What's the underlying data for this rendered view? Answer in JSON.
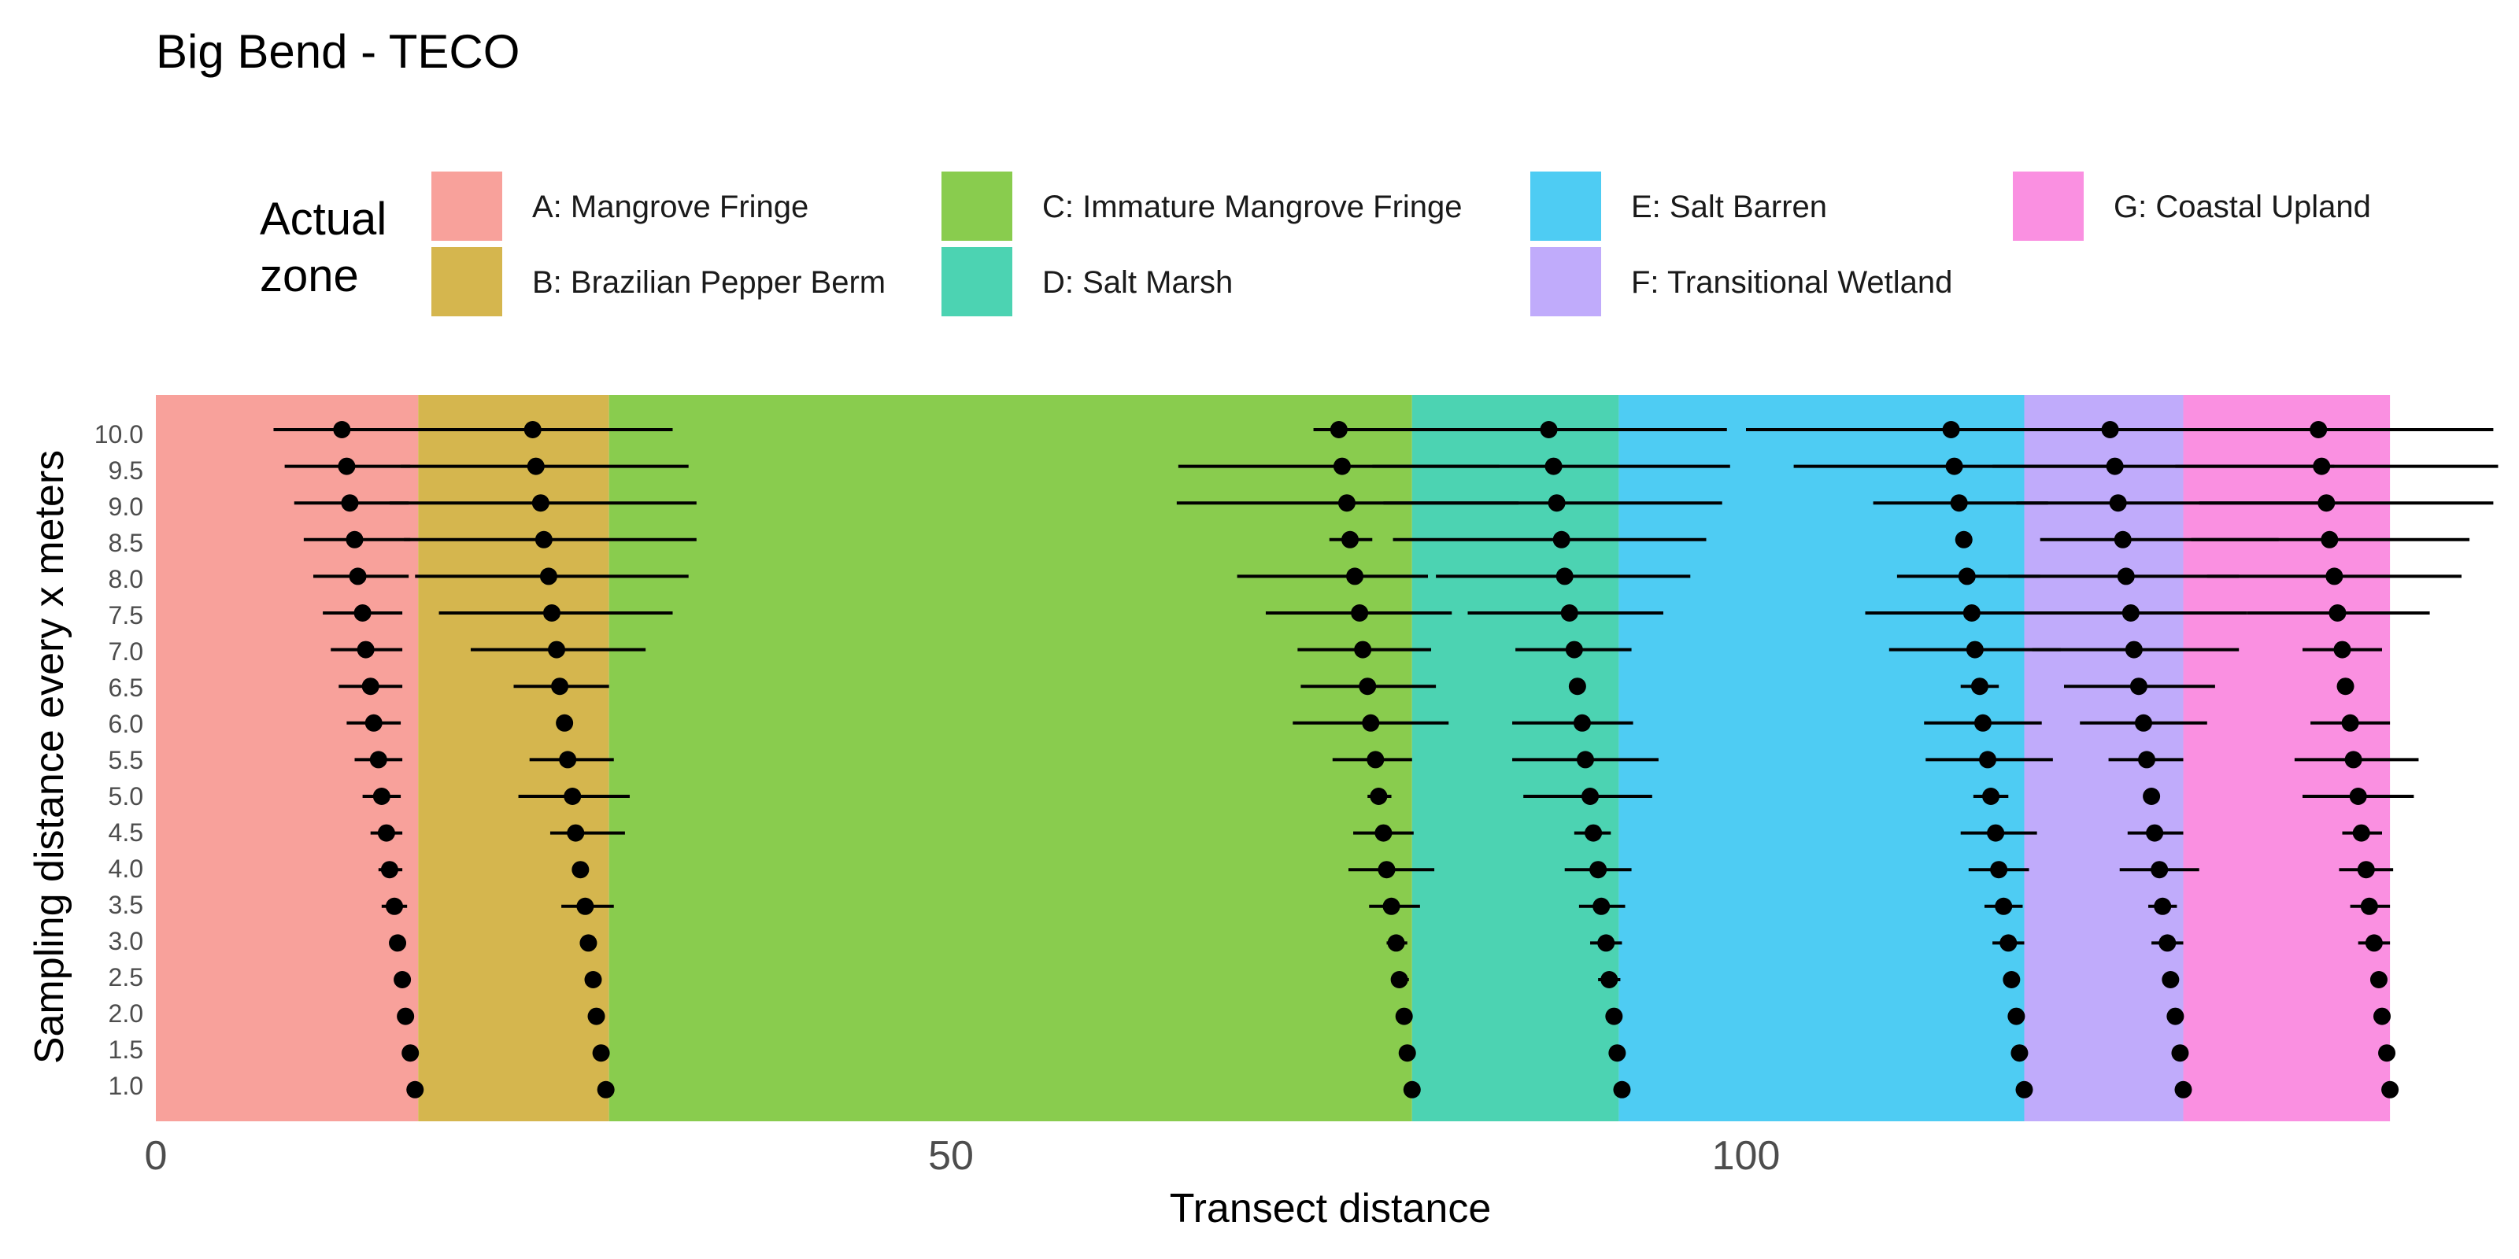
{
  "chart_data": {
    "type": "dot-errorbar",
    "title": "Big Bend - TECO",
    "xlabel": "Transect distance",
    "ylabel": "Sampling distance every x meters",
    "xlim": [
      0,
      148
    ],
    "x_ticks": [
      0,
      50,
      100
    ],
    "y_ticks": [
      "1.0",
      "1.5",
      "2.0",
      "2.5",
      "3.0",
      "3.5",
      "4.0",
      "4.5",
      "5.0",
      "5.5",
      "6.0",
      "6.5",
      "7.0",
      "7.5",
      "8.0",
      "8.5",
      "9.0",
      "9.5",
      "10.0"
    ],
    "legend": {
      "title_lines": [
        "Actual",
        "zone"
      ],
      "position": "top"
    },
    "zones": [
      {
        "label": "A: Mangrove Fringe",
        "start": 0,
        "end": 16.5,
        "color": "#F8A19B"
      },
      {
        "label": "B: Brazilian Pepper Berm",
        "start": 16.5,
        "end": 28.5,
        "color": "#D5B64E"
      },
      {
        "label": "C: Immature Mangrove Fringe",
        "start": 28.5,
        "end": 79,
        "color": "#89CC4E"
      },
      {
        "label": "D: Salt Marsh",
        "start": 79,
        "end": 92,
        "color": "#4CD3B2"
      },
      {
        "label": "E: Salt Barren",
        "start": 92,
        "end": 117.5,
        "color": "#4ECCF3"
      },
      {
        "label": "F: Transitional Wetland",
        "start": 117.5,
        "end": 127.5,
        "color": "#C0ABFB"
      },
      {
        "label": "G: Coastal Upland",
        "start": 127.5,
        "end": 140.5,
        "color": "#FA90E1"
      }
    ],
    "series": [
      {
        "boundary": "A|B",
        "points": [
          {
            "y": 1.0,
            "x": 16.3,
            "lo": 16.3,
            "hi": 16.3
          },
          {
            "y": 1.5,
            "x": 16.0,
            "lo": 15.9,
            "hi": 16.1
          },
          {
            "y": 2.0,
            "x": 15.7,
            "lo": 15.5,
            "hi": 15.9
          },
          {
            "y": 2.5,
            "x": 15.5,
            "lo": 15.2,
            "hi": 15.8
          },
          {
            "y": 3.0,
            "x": 15.2,
            "lo": 14.8,
            "hi": 15.6
          },
          {
            "y": 3.5,
            "x": 15.0,
            "lo": 14.2,
            "hi": 15.8
          },
          {
            "y": 4.0,
            "x": 14.7,
            "lo": 14.0,
            "hi": 15.5
          },
          {
            "y": 4.5,
            "x": 14.5,
            "lo": 13.5,
            "hi": 15.5
          },
          {
            "y": 5.0,
            "x": 14.2,
            "lo": 13.0,
            "hi": 15.4
          },
          {
            "y": 5.5,
            "x": 14.0,
            "lo": 12.5,
            "hi": 15.5
          },
          {
            "y": 6.0,
            "x": 13.7,
            "lo": 12.0,
            "hi": 15.4
          },
          {
            "y": 6.5,
            "x": 13.5,
            "lo": 11.5,
            "hi": 15.5
          },
          {
            "y": 7.0,
            "x": 13.2,
            "lo": 11.0,
            "hi": 15.5
          },
          {
            "y": 7.5,
            "x": 13.0,
            "lo": 10.5,
            "hi": 15.5
          },
          {
            "y": 8.0,
            "x": 12.7,
            "lo": 9.9,
            "hi": 15.9
          },
          {
            "y": 8.5,
            "x": 12.5,
            "lo": 9.3,
            "hi": 16.0
          },
          {
            "y": 9.0,
            "x": 12.2,
            "lo": 8.7,
            "hi": 15.9
          },
          {
            "y": 9.5,
            "x": 12.0,
            "lo": 8.1,
            "hi": 16.0
          },
          {
            "y": 10.0,
            "x": 11.7,
            "lo": 7.4,
            "hi": 16.0
          }
        ]
      },
      {
        "boundary": "B|C",
        "points": [
          {
            "y": 1.0,
            "x": 28.3,
            "lo": 28.3,
            "hi": 28.3
          },
          {
            "y": 1.5,
            "x": 28.0,
            "lo": 27.9,
            "hi": 28.1
          },
          {
            "y": 2.0,
            "x": 27.7,
            "lo": 27.5,
            "hi": 27.9
          },
          {
            "y": 2.5,
            "x": 27.5,
            "lo": 27.0,
            "hi": 28.0
          },
          {
            "y": 3.0,
            "x": 27.2,
            "lo": 26.8,
            "hi": 27.6
          },
          {
            "y": 3.5,
            "x": 27.0,
            "lo": 25.5,
            "hi": 28.8
          },
          {
            "y": 4.0,
            "x": 26.7,
            "lo": 26.3,
            "hi": 27.1
          },
          {
            "y": 4.5,
            "x": 26.4,
            "lo": 24.8,
            "hi": 29.5
          },
          {
            "y": 5.0,
            "x": 26.2,
            "lo": 22.8,
            "hi": 29.8
          },
          {
            "y": 5.5,
            "x": 25.9,
            "lo": 23.5,
            "hi": 28.8
          },
          {
            "y": 6.0,
            "x": 25.7,
            "lo": 25.2,
            "hi": 26.2
          },
          {
            "y": 6.5,
            "x": 25.4,
            "lo": 22.5,
            "hi": 28.5
          },
          {
            "y": 7.0,
            "x": 25.2,
            "lo": 19.8,
            "hi": 30.8
          },
          {
            "y": 7.5,
            "x": 24.9,
            "lo": 17.8,
            "hi": 32.5
          },
          {
            "y": 8.0,
            "x": 24.7,
            "lo": 16.3,
            "hi": 33.5
          },
          {
            "y": 8.5,
            "x": 24.4,
            "lo": 15.6,
            "hi": 34.0
          },
          {
            "y": 9.0,
            "x": 24.2,
            "lo": 14.7,
            "hi": 34.0
          },
          {
            "y": 9.5,
            "x": 23.9,
            "lo": 15.4,
            "hi": 33.5
          },
          {
            "y": 10.0,
            "x": 23.7,
            "lo": 15.3,
            "hi": 32.5
          }
        ]
      },
      {
        "boundary": "C|D",
        "points": [
          {
            "y": 1.0,
            "x": 79.0,
            "lo": 79.0,
            "hi": 79.0
          },
          {
            "y": 1.5,
            "x": 78.7,
            "lo": 78.6,
            "hi": 78.8
          },
          {
            "y": 2.0,
            "x": 78.5,
            "lo": 78.3,
            "hi": 78.7
          },
          {
            "y": 2.5,
            "x": 78.2,
            "lo": 77.7,
            "hi": 78.8
          },
          {
            "y": 3.0,
            "x": 78.0,
            "lo": 77.4,
            "hi": 78.7
          },
          {
            "y": 3.5,
            "x": 77.7,
            "lo": 76.3,
            "hi": 79.5
          },
          {
            "y": 4.0,
            "x": 77.4,
            "lo": 75.0,
            "hi": 80.4
          },
          {
            "y": 4.5,
            "x": 77.2,
            "lo": 75.3,
            "hi": 79.1
          },
          {
            "y": 5.0,
            "x": 76.9,
            "lo": 76.2,
            "hi": 77.7
          },
          {
            "y": 5.5,
            "x": 76.7,
            "lo": 74.0,
            "hi": 79.0
          },
          {
            "y": 6.0,
            "x": 76.4,
            "lo": 71.5,
            "hi": 81.3
          },
          {
            "y": 6.5,
            "x": 76.2,
            "lo": 72.0,
            "hi": 80.5
          },
          {
            "y": 7.0,
            "x": 75.9,
            "lo": 71.8,
            "hi": 80.2
          },
          {
            "y": 7.5,
            "x": 75.7,
            "lo": 69.8,
            "hi": 81.5
          },
          {
            "y": 8.0,
            "x": 75.4,
            "lo": 68.0,
            "hi": 80.0
          },
          {
            "y": 8.5,
            "x": 75.1,
            "lo": 73.8,
            "hi": 76.5
          },
          {
            "y": 9.0,
            "x": 74.9,
            "lo": 64.2,
            "hi": 85.7
          },
          {
            "y": 9.5,
            "x": 74.6,
            "lo": 64.3,
            "hi": 84.5
          },
          {
            "y": 10.0,
            "x": 74.4,
            "lo": 72.8,
            "hi": 76.1
          }
        ]
      },
      {
        "boundary": "D|E",
        "points": [
          {
            "y": 1.0,
            "x": 92.2,
            "lo": 92.2,
            "hi": 92.2
          },
          {
            "y": 1.5,
            "x": 91.9,
            "lo": 91.8,
            "hi": 92.0
          },
          {
            "y": 2.0,
            "x": 91.7,
            "lo": 91.3,
            "hi": 92.1
          },
          {
            "y": 2.5,
            "x": 91.4,
            "lo": 90.7,
            "hi": 92.1
          },
          {
            "y": 3.0,
            "x": 91.2,
            "lo": 90.2,
            "hi": 92.2
          },
          {
            "y": 3.5,
            "x": 90.9,
            "lo": 89.5,
            "hi": 92.4
          },
          {
            "y": 4.0,
            "x": 90.7,
            "lo": 88.6,
            "hi": 92.8
          },
          {
            "y": 4.5,
            "x": 90.4,
            "lo": 89.2,
            "hi": 91.5
          },
          {
            "y": 5.0,
            "x": 90.2,
            "lo": 86.0,
            "hi": 94.1
          },
          {
            "y": 5.5,
            "x": 89.9,
            "lo": 85.3,
            "hi": 94.5
          },
          {
            "y": 6.0,
            "x": 89.7,
            "lo": 85.3,
            "hi": 92.9
          },
          {
            "y": 6.5,
            "x": 89.4,
            "lo": 89.0,
            "hi": 89.8
          },
          {
            "y": 7.0,
            "x": 89.2,
            "lo": 85.5,
            "hi": 92.8
          },
          {
            "y": 7.5,
            "x": 88.9,
            "lo": 82.5,
            "hi": 94.8
          },
          {
            "y": 8.0,
            "x": 88.6,
            "lo": 80.5,
            "hi": 96.5
          },
          {
            "y": 8.5,
            "x": 88.4,
            "lo": 77.8,
            "hi": 97.5
          },
          {
            "y": 9.0,
            "x": 88.1,
            "lo": 77.2,
            "hi": 98.5
          },
          {
            "y": 9.5,
            "x": 87.9,
            "lo": 76.5,
            "hi": 99.0
          },
          {
            "y": 10.0,
            "x": 87.6,
            "lo": 76.0,
            "hi": 98.8
          }
        ]
      },
      {
        "boundary": "E|F",
        "points": [
          {
            "y": 1.0,
            "x": 117.5,
            "lo": 117.5,
            "hi": 117.5
          },
          {
            "y": 1.5,
            "x": 117.2,
            "lo": 117.1,
            "hi": 117.3
          },
          {
            "y": 2.0,
            "x": 117.0,
            "lo": 116.8,
            "hi": 117.3
          },
          {
            "y": 2.5,
            "x": 116.7,
            "lo": 116.3,
            "hi": 117.2
          },
          {
            "y": 3.0,
            "x": 116.5,
            "lo": 115.5,
            "hi": 117.5
          },
          {
            "y": 3.5,
            "x": 116.2,
            "lo": 115.0,
            "hi": 117.4
          },
          {
            "y": 4.0,
            "x": 115.9,
            "lo": 114.0,
            "hi": 117.8
          },
          {
            "y": 4.5,
            "x": 115.7,
            "lo": 113.5,
            "hi": 118.3
          },
          {
            "y": 5.0,
            "x": 115.4,
            "lo": 114.3,
            "hi": 116.5
          },
          {
            "y": 5.5,
            "x": 115.2,
            "lo": 111.3,
            "hi": 119.3
          },
          {
            "y": 6.0,
            "x": 114.9,
            "lo": 111.2,
            "hi": 118.6
          },
          {
            "y": 6.5,
            "x": 114.7,
            "lo": 113.5,
            "hi": 115.9
          },
          {
            "y": 7.0,
            "x": 114.4,
            "lo": 109.0,
            "hi": 119.8
          },
          {
            "y": 7.5,
            "x": 114.2,
            "lo": 107.5,
            "hi": 121.0
          },
          {
            "y": 8.0,
            "x": 113.9,
            "lo": 109.5,
            "hi": 118.5
          },
          {
            "y": 8.5,
            "x": 113.7,
            "lo": 113.7,
            "hi": 113.7
          },
          {
            "y": 9.0,
            "x": 113.4,
            "lo": 108.0,
            "hi": 119.0
          },
          {
            "y": 9.5,
            "x": 113.1,
            "lo": 103.0,
            "hi": 123.5
          },
          {
            "y": 10.0,
            "x": 112.9,
            "lo": 100.0,
            "hi": 125.8
          }
        ]
      },
      {
        "boundary": "F|G",
        "points": [
          {
            "y": 1.0,
            "x": 127.5,
            "lo": 127.5,
            "hi": 127.5
          },
          {
            "y": 1.5,
            "x": 127.3,
            "lo": 127.2,
            "hi": 127.4
          },
          {
            "y": 2.0,
            "x": 127.0,
            "lo": 126.8,
            "hi": 127.2
          },
          {
            "y": 2.5,
            "x": 126.7,
            "lo": 126.3,
            "hi": 127.1
          },
          {
            "y": 3.0,
            "x": 126.5,
            "lo": 125.5,
            "hi": 127.5
          },
          {
            "y": 3.5,
            "x": 126.2,
            "lo": 125.3,
            "hi": 127.1
          },
          {
            "y": 4.0,
            "x": 126.0,
            "lo": 123.5,
            "hi": 128.5
          },
          {
            "y": 4.5,
            "x": 125.7,
            "lo": 124.0,
            "hi": 127.5
          },
          {
            "y": 5.0,
            "x": 125.5,
            "lo": 125.2,
            "hi": 125.8
          },
          {
            "y": 5.5,
            "x": 125.2,
            "lo": 122.8,
            "hi": 127.5
          },
          {
            "y": 6.0,
            "x": 125.0,
            "lo": 121.0,
            "hi": 129.0
          },
          {
            "y": 6.5,
            "x": 124.7,
            "lo": 120.0,
            "hi": 129.5
          },
          {
            "y": 7.0,
            "x": 124.4,
            "lo": 118.0,
            "hi": 131.0
          },
          {
            "y": 7.5,
            "x": 124.2,
            "lo": 119.5,
            "hi": 131.5
          },
          {
            "y": 8.0,
            "x": 123.9,
            "lo": 116.5,
            "hi": 131.0
          },
          {
            "y": 8.5,
            "x": 123.7,
            "lo": 118.5,
            "hi": 133.5
          },
          {
            "y": 9.0,
            "x": 123.4,
            "lo": 117.0,
            "hi": 136.5
          },
          {
            "y": 9.5,
            "x": 123.2,
            "lo": 115.5,
            "hi": 137.0
          },
          {
            "y": 10.0,
            "x": 122.9,
            "lo": 117.0,
            "hi": 139.5
          }
        ]
      },
      {
        "boundary": "G|end",
        "points": [
          {
            "y": 1.0,
            "x": 140.5,
            "lo": 140.5,
            "hi": 140.5
          },
          {
            "y": 1.5,
            "x": 140.3,
            "lo": 140.2,
            "hi": 140.4
          },
          {
            "y": 2.0,
            "x": 140.0,
            "lo": 139.7,
            "hi": 140.3
          },
          {
            "y": 2.5,
            "x": 139.8,
            "lo": 139.3,
            "hi": 140.3
          },
          {
            "y": 3.0,
            "x": 139.5,
            "lo": 138.5,
            "hi": 140.5
          },
          {
            "y": 3.5,
            "x": 139.2,
            "lo": 138.0,
            "hi": 140.5
          },
          {
            "y": 4.0,
            "x": 139.0,
            "lo": 137.3,
            "hi": 140.7
          },
          {
            "y": 4.5,
            "x": 138.7,
            "lo": 137.5,
            "hi": 140.0
          },
          {
            "y": 5.0,
            "x": 138.5,
            "lo": 135.0,
            "hi": 142.0
          },
          {
            "y": 5.5,
            "x": 138.2,
            "lo": 134.5,
            "hi": 142.3
          },
          {
            "y": 6.0,
            "x": 138.0,
            "lo": 135.5,
            "hi": 140.5
          },
          {
            "y": 6.5,
            "x": 137.7,
            "lo": 137.7,
            "hi": 137.7
          },
          {
            "y": 7.0,
            "x": 137.5,
            "lo": 135.0,
            "hi": 140.0
          },
          {
            "y": 7.5,
            "x": 137.2,
            "lo": 131.5,
            "hi": 143.0
          },
          {
            "y": 8.0,
            "x": 137.0,
            "lo": 129.0,
            "hi": 145.0
          },
          {
            "y": 8.5,
            "x": 136.7,
            "lo": 128.0,
            "hi": 145.5
          },
          {
            "y": 9.0,
            "x": 136.5,
            "lo": 128.5,
            "hi": 147.0
          },
          {
            "y": 9.5,
            "x": 136.2,
            "lo": 127.0,
            "hi": 147.3
          },
          {
            "y": 10.0,
            "x": 136.0,
            "lo": 125.0,
            "hi": 147.0
          }
        ]
      }
    ]
  }
}
